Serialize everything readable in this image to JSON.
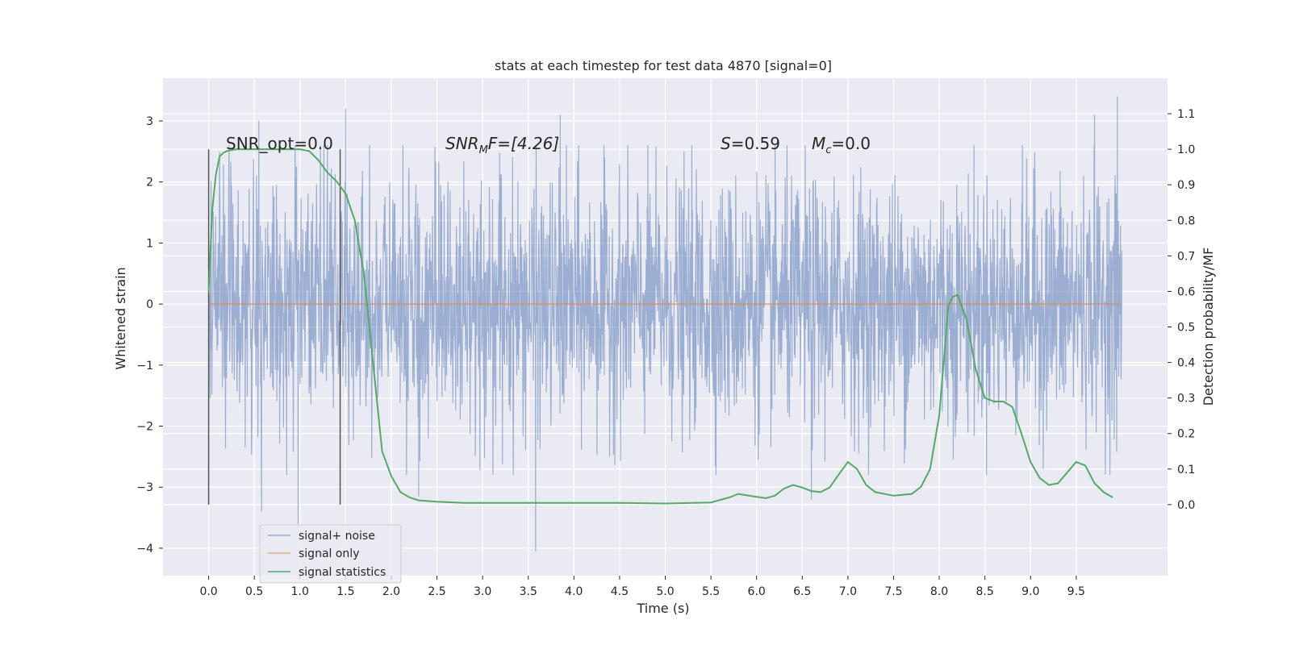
{
  "chart_data": {
    "type": "line",
    "title": "stats at each timestep for test data 4870 [signal=0]",
    "xlabel": "Time (s)",
    "ylabel": "Whitened strain",
    "y2label": "Detection probability/MF",
    "xlim": [
      -0.5,
      10.5
    ],
    "ylim": [
      -4.45,
      3.7
    ],
    "y2lim": [
      -0.2,
      1.2
    ],
    "xticks": [
      "0.0",
      "0.5",
      "1.0",
      "1.5",
      "2.0",
      "2.5",
      "3.0",
      "3.5",
      "4.0",
      "4.5",
      "5.0",
      "5.5",
      "6.0",
      "6.5",
      "7.0",
      "7.5",
      "8.0",
      "8.5",
      "9.0",
      "9.5"
    ],
    "yticks": [
      "3",
      "2",
      "1",
      "0",
      "−1",
      "−2",
      "−3",
      "−4"
    ],
    "y2ticks": [
      "1.1",
      "1.0",
      "0.9",
      "0.8",
      "0.7",
      "0.6",
      "0.5",
      "0.4",
      "0.3",
      "0.2",
      "0.1",
      "0.0"
    ],
    "grid": true,
    "legend_position": "lower-left",
    "annotations": {
      "snr_opt": "SNR_opt=0.0",
      "snr_mf_base": "SNR",
      "snr_mf_sub": "M",
      "snr_mf_rest": "F=[4.26]",
      "s_label": "S",
      "s_value": "=0.59",
      "mc_base": "M",
      "mc_sub": "c",
      "mc_value": "=0.0"
    },
    "vertical_markers": [
      0.0,
      1.44
    ],
    "series": [
      {
        "name": "signal+ noise",
        "color": "#4c72b0",
        "style": "dense noise trace",
        "envelope_upper": [
          [
            0.0,
            1.4
          ],
          [
            1.0,
            1.4
          ],
          [
            2.0,
            1.4
          ],
          [
            3.0,
            1.4
          ],
          [
            4.0,
            1.4
          ],
          [
            5.0,
            1.4
          ],
          [
            6.0,
            1.4
          ],
          [
            7.0,
            1.4
          ],
          [
            8.0,
            1.4
          ],
          [
            9.0,
            1.4
          ],
          [
            10.0,
            1.4
          ]
        ],
        "peaks": [
          [
            0.55,
            3.0
          ],
          [
            1.5,
            3.2
          ],
          [
            3.85,
            3.1
          ],
          [
            9.95,
            3.4
          ],
          [
            9.7,
            3.1
          ]
        ],
        "troughs": [
          [
            0.58,
            -3.4
          ],
          [
            0.98,
            -3.6
          ],
          [
            3.58,
            -4.05
          ],
          [
            6.6,
            -3.2
          ],
          [
            2.3,
            -3.15
          ]
        ]
      },
      {
        "name": "signal only",
        "color": "#dd8452",
        "x": [
          0.0,
          10.0
        ],
        "y": [
          0.0,
          0.0
        ]
      },
      {
        "name": "signal statistics",
        "color": "#55a868",
        "axis": "right",
        "x": [
          0.0,
          0.04,
          0.08,
          0.12,
          0.16,
          0.2,
          0.3,
          0.5,
          0.8,
          1.0,
          1.1,
          1.2,
          1.3,
          1.4,
          1.5,
          1.6,
          1.7,
          1.8,
          1.9,
          2.0,
          2.1,
          2.2,
          2.3,
          2.5,
          2.8,
          3.0,
          3.5,
          4.0,
          4.5,
          5.0,
          5.5,
          5.7,
          5.8,
          6.0,
          6.1,
          6.2,
          6.3,
          6.4,
          6.5,
          6.6,
          6.7,
          6.8,
          6.9,
          7.0,
          7.1,
          7.2,
          7.3,
          7.5,
          7.7,
          7.8,
          7.9,
          8.0,
          8.1,
          8.15,
          8.2,
          8.3,
          8.4,
          8.5,
          8.6,
          8.7,
          8.8,
          8.9,
          9.0,
          9.1,
          9.2,
          9.3,
          9.4,
          9.5,
          9.6,
          9.7,
          9.8,
          9.9
        ],
        "y": [
          0.6,
          0.83,
          0.93,
          0.98,
          0.99,
          0.995,
          1.0,
          1.0,
          1.0,
          1.0,
          0.995,
          0.97,
          0.935,
          0.91,
          0.875,
          0.8,
          0.65,
          0.4,
          0.15,
          0.08,
          0.035,
          0.02,
          0.012,
          0.008,
          0.005,
          0.005,
          0.005,
          0.005,
          0.005,
          0.003,
          0.006,
          0.02,
          0.03,
          0.022,
          0.018,
          0.025,
          0.045,
          0.055,
          0.048,
          0.038,
          0.035,
          0.048,
          0.085,
          0.12,
          0.1,
          0.055,
          0.035,
          0.025,
          0.03,
          0.05,
          0.1,
          0.25,
          0.56,
          0.585,
          0.59,
          0.52,
          0.38,
          0.3,
          0.29,
          0.29,
          0.275,
          0.2,
          0.12,
          0.075,
          0.055,
          0.06,
          0.09,
          0.12,
          0.11,
          0.06,
          0.035,
          0.02
        ]
      }
    ]
  }
}
